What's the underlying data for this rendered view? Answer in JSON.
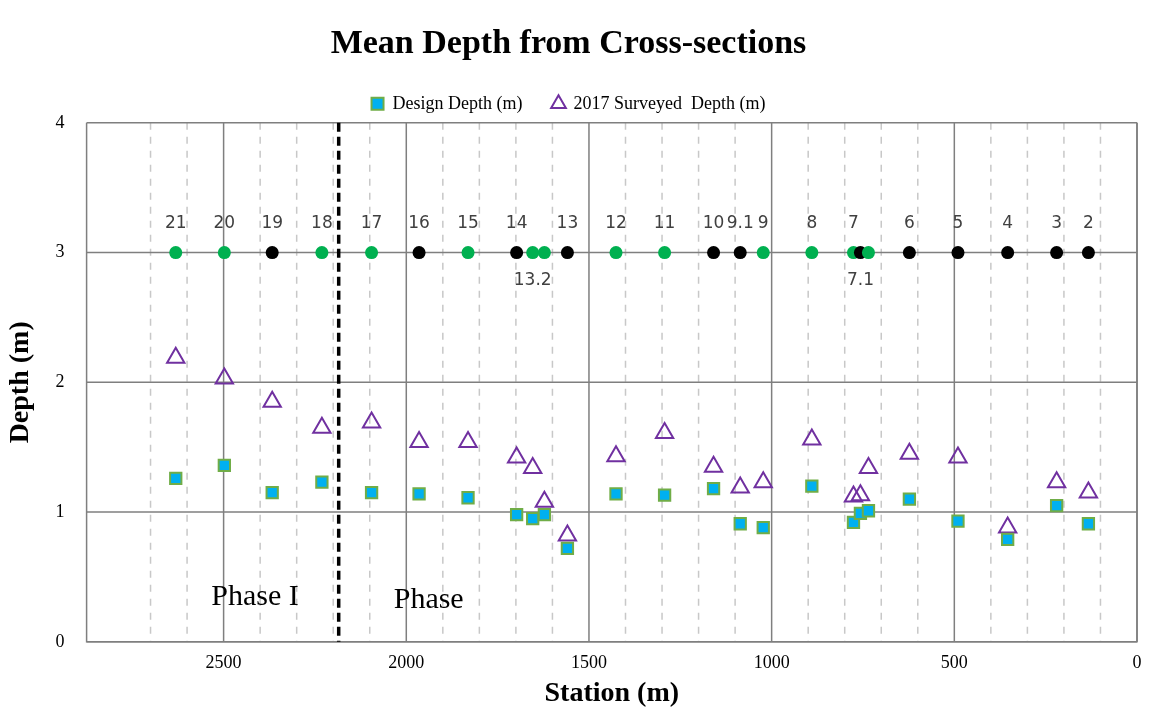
{
  "chart_data": {
    "type": "scatter",
    "title": "Mean Depth from Cross-sections",
    "xlabel": "Station (m)",
    "ylabel": "Depth (m)",
    "x": [
      2631,
      2498,
      2367,
      2231,
      2095,
      1965,
      1831,
      1698,
      1654,
      1622,
      1559,
      1426,
      1293,
      1159,
      1086,
      1023,
      890,
      776,
      757,
      735,
      623,
      490,
      354,
      220,
      133
    ],
    "series": [
      {
        "name": "Design Depth (m)",
        "color": "#00b0f0",
        "marker": "square",
        "values": [
          1.26,
          1.36,
          1.15,
          1.23,
          1.15,
          1.14,
          1.11,
          0.98,
          0.95,
          0.98,
          0.72,
          1.14,
          1.13,
          1.18,
          0.91,
          0.88,
          1.2,
          0.92,
          0.99,
          1.01,
          1.1,
          0.93,
          0.79,
          1.05,
          0.91
        ]
      },
      {
        "name": "2017 Surveyed  Depth (m)",
        "color": "#7030a0",
        "marker": "triangle",
        "values": [
          2.19,
          2.03,
          1.85,
          1.65,
          1.69,
          1.54,
          1.54,
          1.42,
          1.34,
          1.08,
          0.82,
          1.43,
          1.61,
          1.35,
          1.19,
          1.23,
          1.56,
          1.12,
          1.13,
          1.34,
          1.45,
          1.42,
          0.88,
          1.23,
          1.15
        ]
      },
      {
        "marker": "circle",
        "colors": [
          "#00b050",
          "#00b050",
          "#000000",
          "#00b050",
          "#00b050",
          "#000000",
          "#00b050",
          "#000000",
          "#00b050",
          "#00b050",
          "#000000",
          "#00b050",
          "#00b050",
          "#000000",
          "#000000",
          "#00b050",
          "#00b050",
          "#00b050",
          "#000000",
          "#00b050",
          "#000000",
          "#000000",
          "#000000",
          "#000000",
          "#000000"
        ],
        "values": [
          3,
          3,
          3,
          3,
          3,
          3,
          3,
          3,
          3,
          3,
          3,
          3,
          3,
          3,
          3,
          3,
          3,
          3,
          3,
          3,
          3,
          3,
          3,
          3,
          3
        ]
      }
    ],
    "xlim": [
      2875,
      0
    ],
    "xticks": [
      {
        "value": 2700,
        "label": null
      },
      {
        "value": 2600,
        "label": null
      },
      2500,
      {
        "value": 2400,
        "label": null
      },
      {
        "value": 2300,
        "label": null
      },
      {
        "value": 2200,
        "label": null
      },
      {
        "value": 2100,
        "label": null
      },
      2000,
      {
        "value": 1900,
        "label": null
      },
      {
        "value": 1800,
        "label": null
      },
      {
        "value": 1700,
        "label": null
      },
      {
        "value": 1600,
        "label": null
      },
      1500,
      {
        "value": 1400,
        "label": null
      },
      {
        "value": 1300,
        "label": null
      },
      {
        "value": 1200,
        "label": null
      },
      {
        "value": 1100,
        "label": null
      },
      1000,
      {
        "value": 900,
        "label": null
      },
      {
        "value": 800,
        "label": null
      },
      {
        "value": 700,
        "label": null
      },
      {
        "value": 600,
        "label": null
      },
      500,
      {
        "value": 400,
        "label": null
      },
      {
        "value": 300,
        "label": null
      },
      {
        "value": 200,
        "label": null
      },
      {
        "value": 100,
        "label": null
      },
      0
    ],
    "ylim": [
      0,
      4
    ],
    "yticks": [
      0,
      1,
      2,
      3,
      4
    ],
    "grid": true,
    "legend": "top",
    "ref_lines": [
      {
        "axis": "x",
        "value": 2185,
        "color": "#000000",
        "line_style": "dashed"
      }
    ],
    "annotations": [
      "Phase I",
      "Phase",
      {
        "text": "21",
        "x": 2631,
        "y": 3
      },
      {
        "text": "20",
        "x": 2498,
        "y": 3
      },
      {
        "text": "19",
        "x": 2367,
        "y": 3
      },
      {
        "text": "18",
        "x": 2231,
        "y": 3
      },
      {
        "text": "17",
        "x": 2095,
        "y": 3
      },
      {
        "text": "16",
        "x": 1965,
        "y": 3
      },
      {
        "text": "15",
        "x": 1831,
        "y": 3
      },
      {
        "text": "14",
        "x": 1698,
        "y": 3
      },
      {
        "text": "13.2",
        "x": 1654,
        "y": 3
      },
      {
        "text": "13",
        "x": 1559,
        "y": 3
      },
      {
        "text": "12",
        "x": 1426,
        "y": 3
      },
      {
        "text": "11",
        "x": 1293,
        "y": 3
      },
      {
        "text": "10",
        "x": 1159,
        "y": 3
      },
      {
        "text": "9.1",
        "x": 1086,
        "y": 3
      },
      {
        "text": "9",
        "x": 1023,
        "y": 3
      },
      {
        "text": "8",
        "x": 890,
        "y": 3
      },
      {
        "text": "7",
        "x": 776,
        "y": 3
      },
      {
        "text": "7.1",
        "x": 757,
        "y": 3
      },
      {
        "text": "6",
        "x": 623,
        "y": 3
      },
      {
        "text": "5",
        "x": 490,
        "y": 3
      },
      {
        "text": "4",
        "x": 354,
        "y": 3
      },
      {
        "text": "3",
        "x": 220,
        "y": 3
      },
      {
        "text": "2",
        "x": 133,
        "y": 3
      }
    ]
  }
}
